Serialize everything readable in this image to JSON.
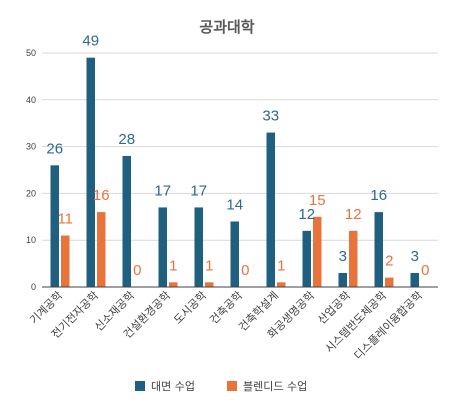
{
  "chart_data": {
    "type": "bar",
    "title": "공과대학",
    "categories": [
      "기계공학",
      "전기전자공학",
      "신소재공학",
      "건설환경공학",
      "도시공학",
      "건축공학",
      "건축학설계",
      "화공생명공학",
      "산업공학",
      "시스템반도체공학",
      "디스플레이융합공학"
    ],
    "series": [
      {
        "name": "대면 수업",
        "values": [
          26,
          49,
          28,
          17,
          17,
          14,
          33,
          12,
          3,
          16,
          3
        ],
        "color": "#1f5f7f",
        "label_color": "#2e6a8f"
      },
      {
        "name": "블렌디드 수업",
        "values": [
          11,
          16,
          0,
          1,
          1,
          0,
          1,
          15,
          12,
          2,
          0
        ],
        "color": "#e8743b",
        "label_color": "#e8743b"
      }
    ],
    "ylim": [
      0,
      50
    ],
    "yticks": [
      0,
      10,
      20,
      30,
      40,
      50
    ],
    "grid": true,
    "legend_position": "bottom",
    "xlabel": "",
    "ylabel": ""
  }
}
